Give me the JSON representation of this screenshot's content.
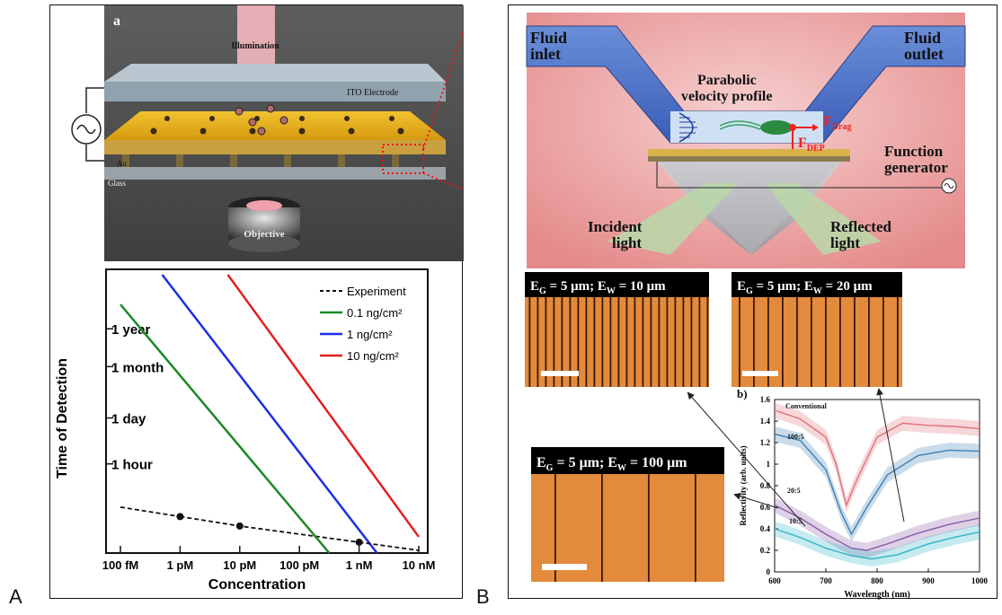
{
  "panel_letters": {
    "a": "A",
    "b": "B"
  },
  "panelA": {
    "schematic": {
      "tag": "a",
      "illumination": "Illumination",
      "ito": "ITO Electrode",
      "au": "Au",
      "glass": "Glass",
      "objective": "Objective"
    },
    "chart": {
      "xlabel": "Concentration",
      "ylabel": "Time of Detection",
      "xticks": [
        "100 fM",
        "1 pM",
        "10 pM",
        "100 pM",
        "1 nM",
        "10 nM"
      ],
      "yticks": [
        "1 year",
        "1 month",
        "1 day",
        "1 hour"
      ],
      "legend": [
        "Experiment",
        "0.1 ng/cm²",
        "1 ng/cm²",
        "10 ng/cm²"
      ]
    }
  },
  "panelB": {
    "schematic": {
      "inlet": [
        "Fluid",
        "inlet"
      ],
      "outlet": [
        "Fluid",
        "outlet"
      ],
      "profile": [
        "Parabolic",
        "velocity profile"
      ],
      "fdrag": "F",
      "fdrag_sub": "Drag",
      "fdep": "F",
      "fdep_sub": "DEP",
      "func": [
        "Function",
        "generator"
      ],
      "incident": [
        "Incident",
        "light"
      ],
      "reflected": [
        "Reflected",
        "light"
      ]
    },
    "micro": [
      {
        "eg": "E",
        "eg_sub": "G",
        "eg_val": " = 5 μm; ",
        "ew": "E",
        "ew_sub": "W",
        "ew_val": " = 10 μm"
      },
      {
        "eg": "E",
        "eg_sub": "G",
        "eg_val": " = 5 μm; ",
        "ew": "E",
        "ew_sub": "W",
        "ew_val": " = 20 μm"
      },
      {
        "eg": "E",
        "eg_sub": "G",
        "eg_val": " = 5 μm; ",
        "ew": "E",
        "ew_sub": "W",
        "ew_val": " = 100 μm"
      }
    ],
    "chart": {
      "tag": "b)",
      "xlabel": "Wavelength (nm)",
      "ylabel": "Reflectivity (arb. units)",
      "xticks": [
        "600",
        "700",
        "800",
        "900",
        "1000"
      ],
      "yticks": [
        "0",
        "0.2",
        "0.4",
        "0.6",
        "0.8",
        "1",
        "1.2",
        "1.4",
        "1.6"
      ],
      "labels": [
        "Conventional",
        "100:5",
        "20:5",
        "10:5"
      ]
    }
  },
  "chart_data": [
    {
      "type": "line",
      "xlabel": "Concentration",
      "ylabel": "Time of Detection",
      "x": [
        "100 fM",
        "1 pM",
        "10 pM",
        "100 pM",
        "1 nM",
        "10 nM"
      ],
      "series": [
        {
          "name": "Experiment",
          "points": [
            [
              1,
              1.35
            ],
            [
              2,
              1.0
            ],
            [
              4,
              0.4
            ]
          ]
        },
        {
          "name": "0.1 ng/cm²",
          "points": [
            [
              0,
              9.2
            ],
            [
              3.5,
              0
            ]
          ]
        },
        {
          "name": "1 ng/cm²",
          "points": [
            [
              0.7,
              10.3
            ],
            [
              4.3,
              0
            ]
          ]
        },
        {
          "name": "10 ng/cm²",
          "points": [
            [
              1.8,
              10.3
            ],
            [
              5,
              0.6
            ]
          ]
        }
      ]
    },
    {
      "type": "line",
      "xlabel": "Wavelength (nm)",
      "ylabel": "Reflectivity (arb. units)",
      "xlim": [
        600,
        1000
      ],
      "ylim": [
        0,
        1.6
      ],
      "series": [
        {
          "name": "Conventional",
          "color": "#e0707a",
          "points": [
            [
              600,
              1.5
            ],
            [
              650,
              1.42
            ],
            [
              700,
              1.25
            ],
            [
              720,
              1.0
            ],
            [
              740,
              0.62
            ],
            [
              760,
              0.85
            ],
            [
              800,
              1.25
            ],
            [
              850,
              1.38
            ],
            [
              900,
              1.36
            ],
            [
              950,
              1.35
            ],
            [
              1000,
              1.33
            ]
          ]
        },
        {
          "name": "100:5",
          "color": "#3f7fb5",
          "points": [
            [
              600,
              1.28
            ],
            [
              650,
              1.22
            ],
            [
              700,
              0.95
            ],
            [
              730,
              0.55
            ],
            [
              750,
              0.35
            ],
            [
              780,
              0.6
            ],
            [
              820,
              0.9
            ],
            [
              880,
              1.08
            ],
            [
              940,
              1.13
            ],
            [
              1000,
              1.12
            ]
          ]
        },
        {
          "name": "20:5",
          "color": "#8a5aa6",
          "points": [
            [
              600,
              0.62
            ],
            [
              650,
              0.5
            ],
            [
              700,
              0.35
            ],
            [
              750,
              0.22
            ],
            [
              780,
              0.2
            ],
            [
              820,
              0.26
            ],
            [
              880,
              0.36
            ],
            [
              940,
              0.44
            ],
            [
              1000,
              0.5
            ]
          ]
        },
        {
          "name": "10:5",
          "color": "#2fb3c6",
          "points": [
            [
              600,
              0.4
            ],
            [
              650,
              0.32
            ],
            [
              700,
              0.22
            ],
            [
              750,
              0.15
            ],
            [
              790,
              0.12
            ],
            [
              840,
              0.16
            ],
            [
              900,
              0.26
            ],
            [
              950,
              0.32
            ],
            [
              1000,
              0.37
            ]
          ]
        }
      ]
    }
  ]
}
